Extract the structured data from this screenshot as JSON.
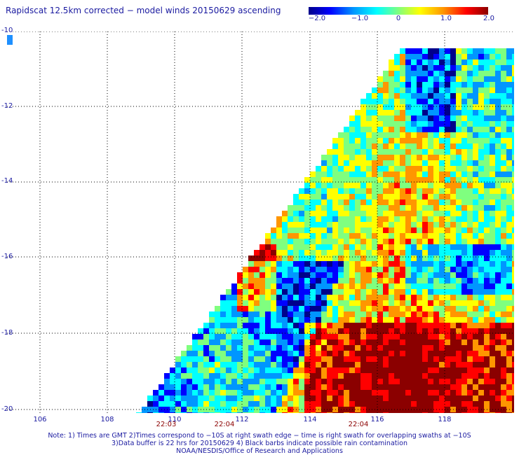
{
  "title": "Rapidscat 12.5km corrected − model winds 20150629 ascending",
  "colorbar": {
    "ticks": [
      "−2.0",
      "−1.0",
      "0",
      "1.0",
      "2.0"
    ],
    "min": -2.0,
    "max": 2.0,
    "colors": [
      "#00008b",
      "#0000ff",
      "#0096ff",
      "#00ffff",
      "#7fff7f",
      "#ffff00",
      "#ff9600",
      "#ff0000",
      "#8b0000"
    ]
  },
  "axes": {
    "lat_labels": [
      "-10",
      "-12",
      "-14",
      "-16",
      "-18",
      "-20"
    ],
    "lon_labels": [
      "106",
      "108",
      "110",
      "112",
      "114",
      "116",
      "118"
    ]
  },
  "times": [
    "22:03",
    "22:04",
    "22:04"
  ],
  "notes": [
    "Note: 1) Times are GMT 2)Times correspond to −10S at right swath edge − time is right swath for overlapping swaths at −10S",
    "3)Data buffer is 22 hrs for 20150629 4) Black barbs indicate possible rain contamination",
    "NOAA/NESDIS/Office of Research and Applications"
  ],
  "colors": {
    "text": "#1a1aa0",
    "time_text": "#8b0000",
    "grid": "#000000"
  }
}
